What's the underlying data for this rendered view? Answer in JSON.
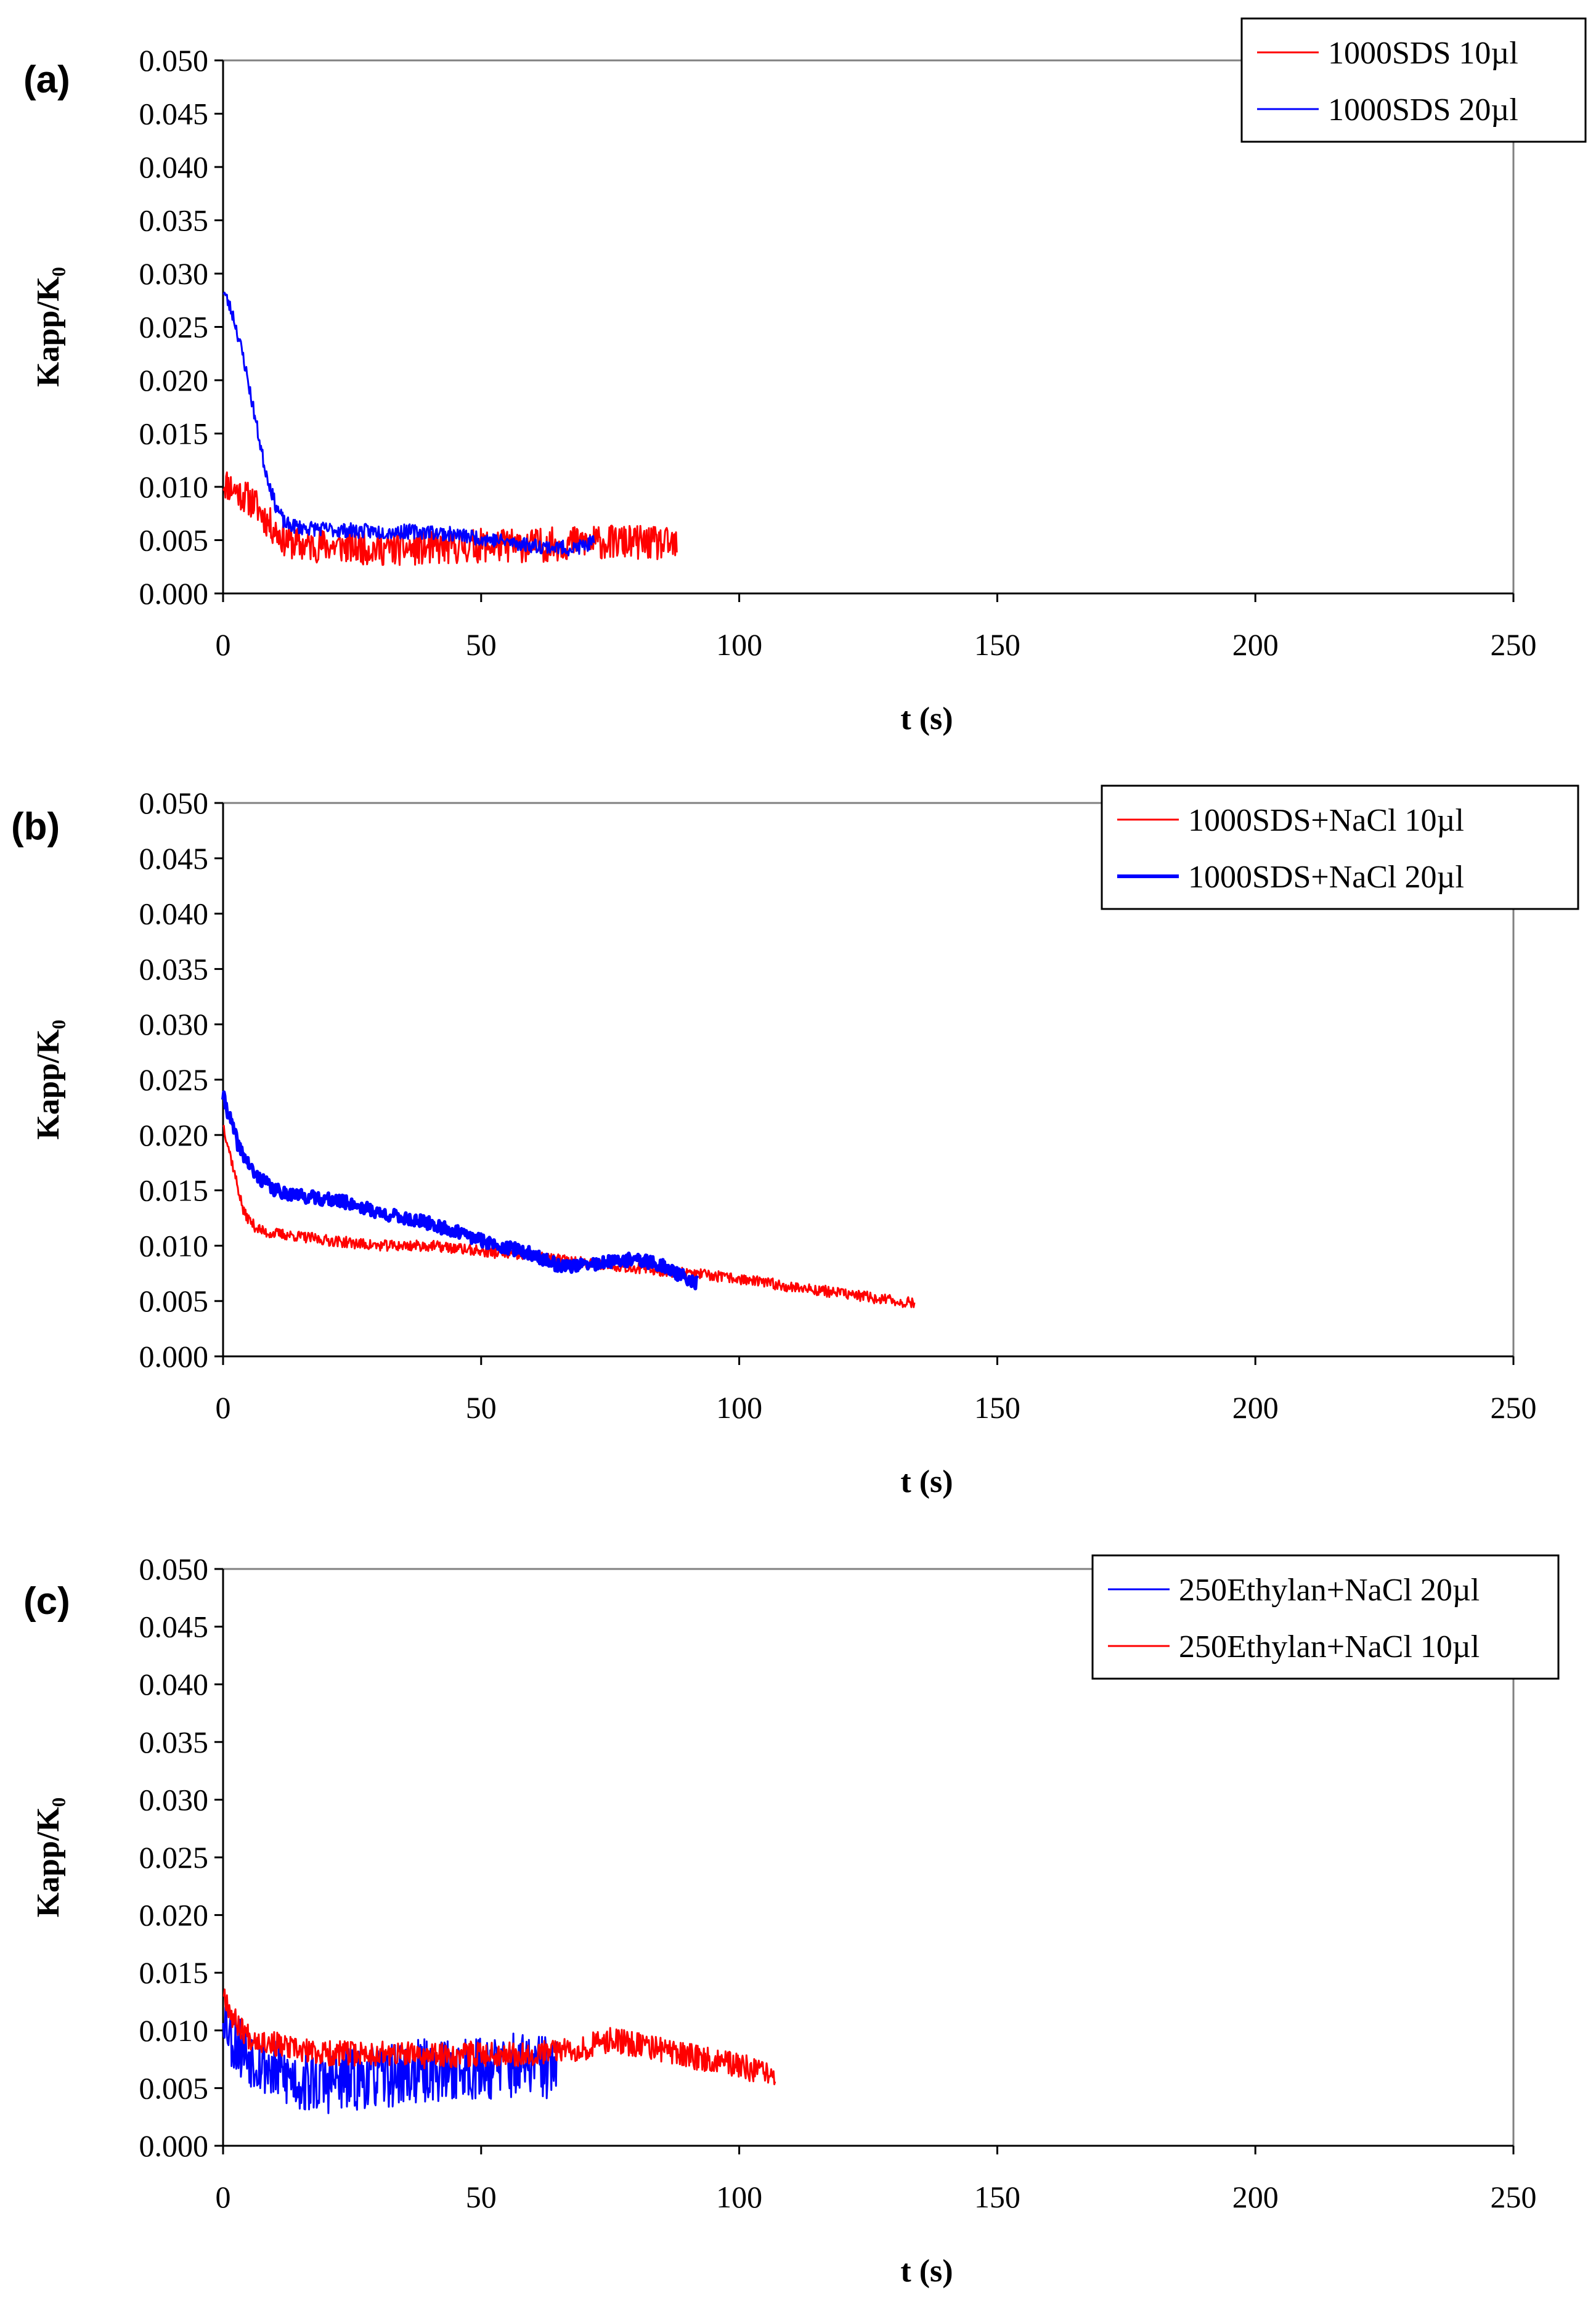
{
  "chart_data": [
    {
      "type": "line",
      "panel_label": "(a)",
      "xlabel": "t (s)",
      "ylabel": "Kapp/K₀",
      "xlim": [
        0,
        250
      ],
      "ylim": [
        0,
        0.05
      ],
      "x_ticks": [
        "0",
        "50",
        "100",
        "150",
        "200",
        "250"
      ],
      "y_ticks": [
        "0.000",
        "0.005",
        "0.010",
        "0.015",
        "0.020",
        "0.025",
        "0.030",
        "0.035",
        "0.040",
        "0.045",
        "0.050"
      ],
      "legend_position": "top-right",
      "series": [
        {
          "name": "1000SDS 10µl",
          "color": "#ff0000",
          "width": 3,
          "x": [
            0,
            3,
            6,
            9,
            12,
            15,
            20,
            30,
            40,
            50,
            60,
            70,
            80,
            88
          ],
          "y": [
            0.0105,
            0.0095,
            0.0085,
            0.0065,
            0.005,
            0.0045,
            0.0045,
            0.0042,
            0.0042,
            0.0045,
            0.0045,
            0.0048,
            0.0048,
            0.0045
          ],
          "noise": 0.0016,
          "seed": 11
        },
        {
          "name": "1000SDS 20µl",
          "color": "#0000ff",
          "width": 3,
          "x": [
            0,
            2,
            4,
            6,
            8,
            10,
            12,
            15,
            20,
            30,
            40,
            50,
            60,
            68,
            72
          ],
          "y": [
            0.0285,
            0.026,
            0.022,
            0.017,
            0.012,
            0.0085,
            0.0065,
            0.0062,
            0.006,
            0.0058,
            0.0058,
            0.0052,
            0.0045,
            0.0042,
            0.0048
          ],
          "noise": 0.0007,
          "seed": 23
        }
      ]
    },
    {
      "type": "line",
      "panel_label": "(b)",
      "xlabel": "t (s)",
      "ylabel": "Kapp/K₀",
      "xlim": [
        0,
        250
      ],
      "ylim": [
        0,
        0.05
      ],
      "x_ticks": [
        "0",
        "50",
        "100",
        "150",
        "200",
        "250"
      ],
      "y_ticks": [
        "0.000",
        "0.005",
        "0.010",
        "0.015",
        "0.020",
        "0.025",
        "0.030",
        "0.035",
        "0.040",
        "0.045",
        "0.050"
      ],
      "legend_position": "top-right",
      "series": [
        {
          "name": "1000SDS+NaCl 10µl",
          "color": "#ff0000",
          "width": 3,
          "x": [
            0,
            2,
            4,
            6,
            8,
            12,
            20,
            30,
            40,
            50,
            60,
            70,
            80,
            90,
            100,
            110,
            120,
            130,
            134
          ],
          "y": [
            0.021,
            0.017,
            0.013,
            0.0118,
            0.0112,
            0.011,
            0.0105,
            0.01,
            0.01,
            0.0095,
            0.009,
            0.0085,
            0.008,
            0.0075,
            0.007,
            0.0063,
            0.0057,
            0.005,
            0.0048
          ],
          "noise": 0.0005,
          "seed": 37
        },
        {
          "name": "1000SDS+NaCl 20µl",
          "color": "#0000ff",
          "width": 6,
          "x": [
            0,
            3,
            6,
            10,
            15,
            20,
            25,
            30,
            40,
            50,
            60,
            65,
            70,
            75,
            80,
            85,
            90,
            92
          ],
          "y": [
            0.0235,
            0.019,
            0.0165,
            0.015,
            0.0145,
            0.0142,
            0.0138,
            0.013,
            0.012,
            0.0105,
            0.0092,
            0.0082,
            0.0082,
            0.0085,
            0.0088,
            0.0082,
            0.007,
            0.0065
          ],
          "noise": 0.0006,
          "seed": 41
        }
      ]
    },
    {
      "type": "line",
      "panel_label": "(c)",
      "xlabel": "t (s)",
      "ylabel": "Kapp/K₀",
      "xlim": [
        0,
        250
      ],
      "ylim": [
        0,
        0.05
      ],
      "x_ticks": [
        "0",
        "50",
        "100",
        "150",
        "200",
        "250"
      ],
      "y_ticks": [
        "0.000",
        "0.005",
        "0.010",
        "0.015",
        "0.020",
        "0.025",
        "0.030",
        "0.035",
        "0.040",
        "0.045",
        "0.050"
      ],
      "legend_position": "top-right",
      "series": [
        {
          "name": "250Ethylan+NaCl 20µl",
          "color": "#0000ff",
          "width": 3,
          "x": [
            0,
            2,
            5,
            10,
            15,
            20,
            30,
            40,
            50,
            60,
            65
          ],
          "y": [
            0.012,
            0.009,
            0.008,
            0.0065,
            0.0055,
            0.0055,
            0.006,
            0.0065,
            0.0068,
            0.007,
            0.0065
          ],
          "noise": 0.0028,
          "seed": 53
        },
        {
          "name": "250Ethylan+NaCl 10µl",
          "color": "#ff0000",
          "width": 3,
          "x": [
            0,
            2,
            5,
            10,
            15,
            20,
            30,
            40,
            50,
            60,
            70,
            75,
            80,
            90,
            100,
            107
          ],
          "y": [
            0.0135,
            0.011,
            0.0095,
            0.0088,
            0.0082,
            0.008,
            0.008,
            0.0078,
            0.008,
            0.008,
            0.0085,
            0.0092,
            0.0088,
            0.0078,
            0.007,
            0.0058
          ],
          "noise": 0.0011,
          "seed": 67
        }
      ]
    }
  ]
}
